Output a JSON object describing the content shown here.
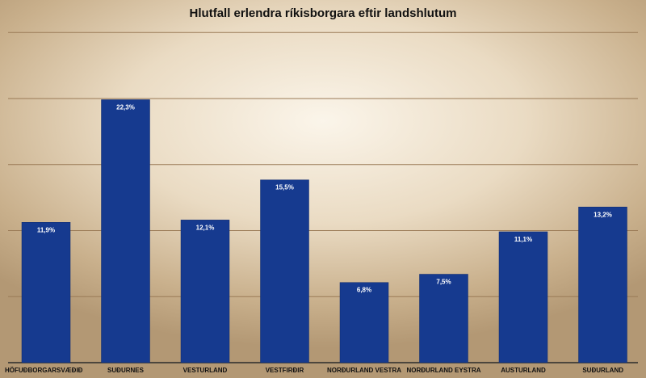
{
  "chart_data": {
    "type": "bar",
    "title": "Hlutfall erlendra ríkisborgara eftir landshlutum",
    "xlabel": "",
    "ylabel": "",
    "ylim": [
      0,
      28
    ],
    "grid": true,
    "categories": [
      "HÖFUÐBORGARSVÆÐIÐ",
      "SUÐURNES",
      "VESTURLAND",
      "VESTFIRÐIR",
      "NORÐURLAND VESTRA",
      "NORÐURLAND EYSTRA",
      "AUSTURLAND",
      "SUÐURLAND"
    ],
    "values": [
      11.9,
      22.3,
      12.1,
      15.5,
      6.8,
      7.5,
      11.1,
      13.2
    ],
    "data_labels": [
      "11,9%",
      "22,3%",
      "12,1%",
      "15,5%",
      "6,8%",
      "7,5%",
      "11,1%",
      "13,2%"
    ],
    "colors": {
      "bar": "#163a8f",
      "grid": "#9a7a56"
    }
  }
}
